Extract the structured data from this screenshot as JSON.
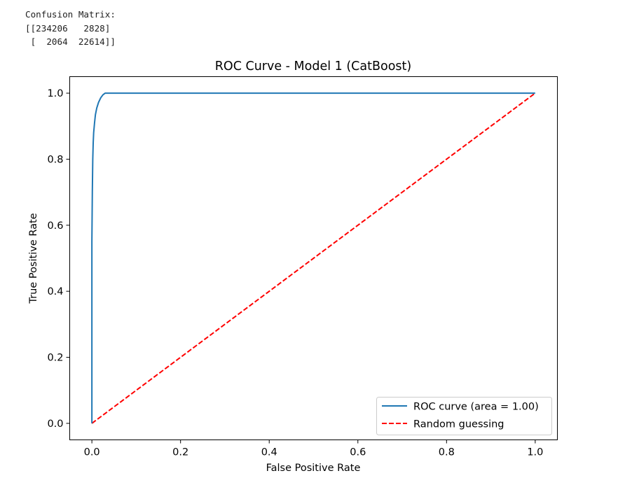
{
  "console": {
    "heading": "Confusion Matrix:",
    "matrix_lines": [
      "[[234206   2828]",
      " [  2064  22614]]"
    ]
  },
  "chart_data": {
    "type": "line",
    "title": "ROC Curve - Model 1 (CatBoost)",
    "xlabel": "False Positive Rate",
    "ylabel": "True Positive Rate",
    "xlim": [
      -0.05,
      1.05
    ],
    "ylim": [
      -0.05,
      1.05
    ],
    "xticks": [
      0.0,
      0.2,
      0.4,
      0.6,
      0.8,
      1.0
    ],
    "yticks": [
      0.0,
      0.2,
      0.4,
      0.6,
      0.8,
      1.0
    ],
    "xtick_labels": [
      "0.0",
      "0.2",
      "0.4",
      "0.6",
      "0.8",
      "1.0"
    ],
    "ytick_labels": [
      "0.0",
      "0.2",
      "0.4",
      "0.6",
      "0.8",
      "1.0"
    ],
    "grid": false,
    "legend_position": "lower-right",
    "series": [
      {
        "name": "ROC curve (area = 1.00)",
        "color": "#1f77b4",
        "style": "solid",
        "x": [
          0.0,
          0.0,
          0.0,
          0.001,
          0.002,
          0.003,
          0.004,
          0.006,
          0.008,
          0.011,
          0.015,
          0.02,
          0.025,
          0.03,
          0.035,
          1.0
        ],
        "y": [
          0.0,
          0.25,
          0.55,
          0.7,
          0.8,
          0.85,
          0.88,
          0.91,
          0.935,
          0.955,
          0.972,
          0.986,
          0.995,
          1.0,
          1.0,
          1.0
        ]
      },
      {
        "name": "Random guessing",
        "color": "#ff0000",
        "style": "dashed",
        "x": [
          0.0,
          1.0
        ],
        "y": [
          0.0,
          1.0
        ]
      }
    ]
  }
}
